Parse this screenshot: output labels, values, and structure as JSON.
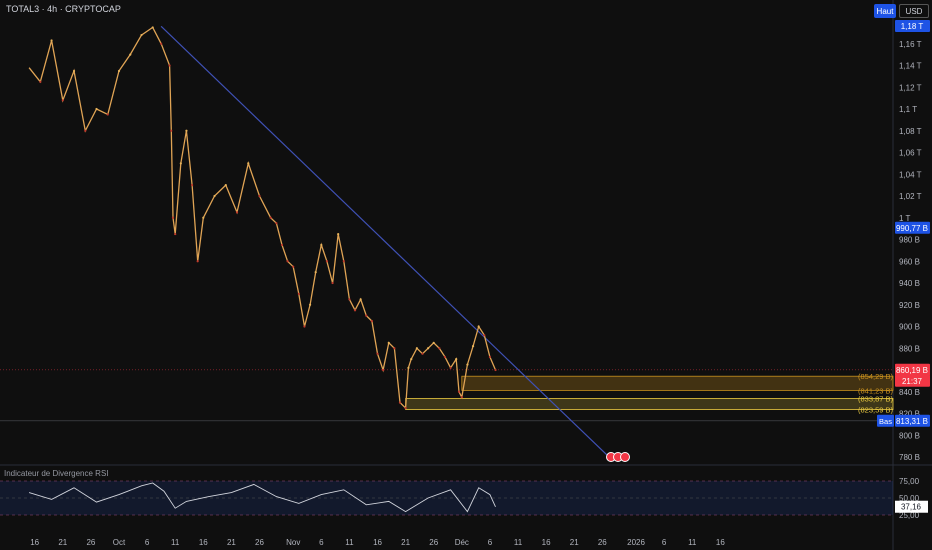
{
  "header": {
    "title": "TOTAL3 · 4h · CRYPTOCAP",
    "high_button": "Haut",
    "currency_button": "USD"
  },
  "rsi_panel": {
    "title": "Indicateur de Divergence RSI",
    "levels": [
      75,
      50,
      25
    ],
    "level_labels": [
      "75,00",
      "50,00",
      "25,00"
    ],
    "current_label": "37,16",
    "current_value": 37.16
  },
  "price_labels": {
    "top": "1,18 T",
    "mid": "990,77 B",
    "current": "860,19 B",
    "countdown": "21:37",
    "low_tag": "Bas",
    "low": "813,31 B"
  },
  "zones": [
    {
      "label": "(854,29 B)",
      "value": 854.29,
      "color": "#c8901e"
    },
    {
      "label": "(841,23 B)",
      "value": 841.23,
      "color": "#c8901e"
    },
    {
      "label": "(833,87 B)",
      "value": 833.87,
      "color": "#e8c840"
    },
    {
      "label": "(823,59 B)",
      "value": 823.59,
      "color": "#e8c840"
    }
  ],
  "chart_data": {
    "type": "line",
    "title": "TOTAL3 · 4h · CRYPTOCAP",
    "y_unit": "B USD",
    "ylim": [
      770,
      1180
    ],
    "y_ticks": [
      {
        "value": 780,
        "label": "780 B"
      },
      {
        "value": 800,
        "label": "800 B"
      },
      {
        "value": 820,
        "label": "820 B"
      },
      {
        "value": 840,
        "label": "840 B"
      },
      {
        "value": 880,
        "label": "880 B"
      },
      {
        "value": 900,
        "label": "900 B"
      },
      {
        "value": 920,
        "label": "920 B"
      },
      {
        "value": 940,
        "label": "940 B"
      },
      {
        "value": 960,
        "label": "960 B"
      },
      {
        "value": 980,
        "label": "980 B"
      },
      {
        "value": 1000,
        "label": "1 T"
      },
      {
        "value": 1020,
        "label": "1,02 T"
      },
      {
        "value": 1040,
        "label": "1,04 T"
      },
      {
        "value": 1060,
        "label": "1,06 T"
      },
      {
        "value": 1080,
        "label": "1,08 T"
      },
      {
        "value": 1100,
        "label": "1,1 T"
      },
      {
        "value": 1120,
        "label": "1,12 T"
      },
      {
        "value": 1140,
        "label": "1,14 T"
      },
      {
        "value": 1160,
        "label": "1,16 T"
      }
    ],
    "x_ticks": [
      "16",
      "21",
      "26",
      "Oct",
      "6",
      "11",
      "16",
      "21",
      "26",
      "Nov",
      "6",
      "11",
      "16",
      "21",
      "26",
      "Déc",
      "6",
      "11",
      "16",
      "21",
      "26",
      "2026",
      "6",
      "11",
      "16"
    ],
    "x_tick_days": [
      -15,
      -10,
      -5,
      0,
      5,
      10,
      15,
      20,
      25,
      31,
      36,
      41,
      46,
      51,
      56,
      61,
      66,
      71,
      76,
      81,
      86,
      92,
      97,
      102,
      107
    ],
    "x_unit": "days since Oct 1",
    "series": [
      {
        "name": "TOTAL3",
        "x": [
          -16,
          -14,
          -12,
          -10,
          -8,
          -6,
          -4,
          -2,
          0,
          2,
          4,
          6,
          7.5,
          9,
          9.3,
          9.6,
          10,
          11,
          12,
          13,
          14,
          15,
          17,
          19,
          21,
          23,
          25,
          27,
          28,
          29,
          30,
          31,
          32,
          33,
          34,
          35,
          36,
          37,
          38,
          39,
          40,
          41,
          42,
          43,
          44,
          45,
          46,
          47,
          48,
          49,
          50,
          51,
          51.5,
          52,
          53,
          54,
          55,
          56,
          57,
          58,
          59,
          60,
          60.5,
          61,
          62,
          63,
          64,
          65,
          66,
          67
        ],
        "values": [
          1138,
          1125,
          1163,
          1108,
          1135,
          1080,
          1100,
          1095,
          1135,
          1150,
          1168,
          1175,
          1160,
          1140,
          1080,
          1000,
          985,
          1050,
          1080,
          1030,
          960,
          1000,
          1020,
          1030,
          1005,
          1050,
          1020,
          1000,
          995,
          975,
          960,
          955,
          930,
          900,
          920,
          950,
          975,
          960,
          940,
          985,
          960,
          925,
          915,
          925,
          910,
          905,
          875,
          860,
          885,
          880,
          830,
          825,
          862,
          870,
          880,
          875,
          880,
          885,
          880,
          872,
          862,
          870,
          840,
          835,
          865,
          882,
          900,
          892,
          872,
          860
        ]
      }
    ],
    "resistance_trendline": {
      "from": {
        "x": 7.5,
        "y": 1176
      },
      "to": {
        "x": 88,
        "y": 776
      }
    },
    "rsi_series": {
      "name": "RSI",
      "x": [
        -16,
        -12,
        -8,
        -4,
        0,
        4,
        6,
        8,
        10,
        12,
        16,
        20,
        24,
        28,
        32,
        36,
        40,
        44,
        48,
        51,
        55,
        59,
        62,
        64,
        66,
        67
      ],
      "values": [
        58,
        48,
        65,
        44,
        55,
        68,
        72,
        60,
        35,
        45,
        52,
        58,
        70,
        52,
        42,
        55,
        62,
        40,
        45,
        30,
        50,
        62,
        30,
        65,
        55,
        37
      ]
    }
  }
}
